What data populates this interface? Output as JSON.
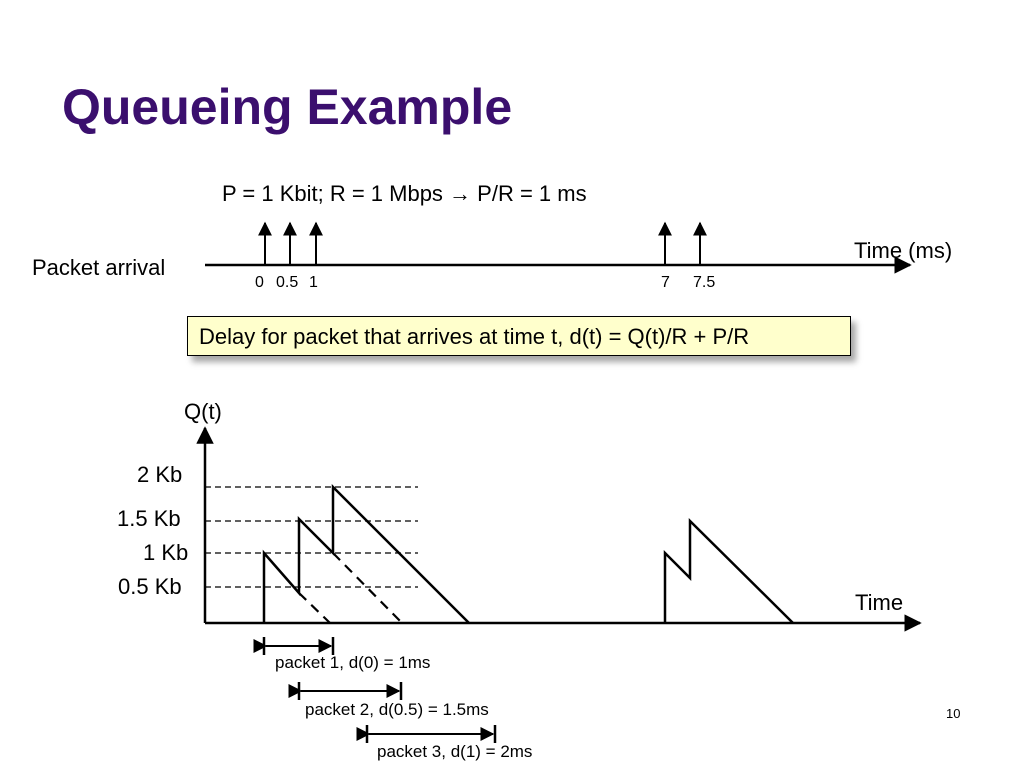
{
  "slide": {
    "title": "Queueing Example",
    "formula_prefix": "P = 1 Kbit; R = 1 Mbps ",
    "formula_arrow": "→",
    "formula_suffix": " P/R = 1 ms",
    "packet_arrival_label": "Packet arrival",
    "time_ms_label": "Time (ms)",
    "arrival_ticks": [
      "0",
      "0.5",
      "1",
      "7",
      "7.5"
    ],
    "delay_box": "Delay for packet that arrives at time t, d(t) = Q(t)/R + P/R",
    "q_axis_label": "Q(t)",
    "time_axis_label": "Time",
    "q_levels": [
      "2 Kb",
      "1.5 Kb",
      "1 Kb",
      "0.5 Kb"
    ],
    "packet_delays": [
      "packet 1, d(0) = 1ms",
      "packet 2, d(0.5) = 1.5ms",
      "packet 3, d(1) = 2ms"
    ],
    "page_number": "10"
  }
}
